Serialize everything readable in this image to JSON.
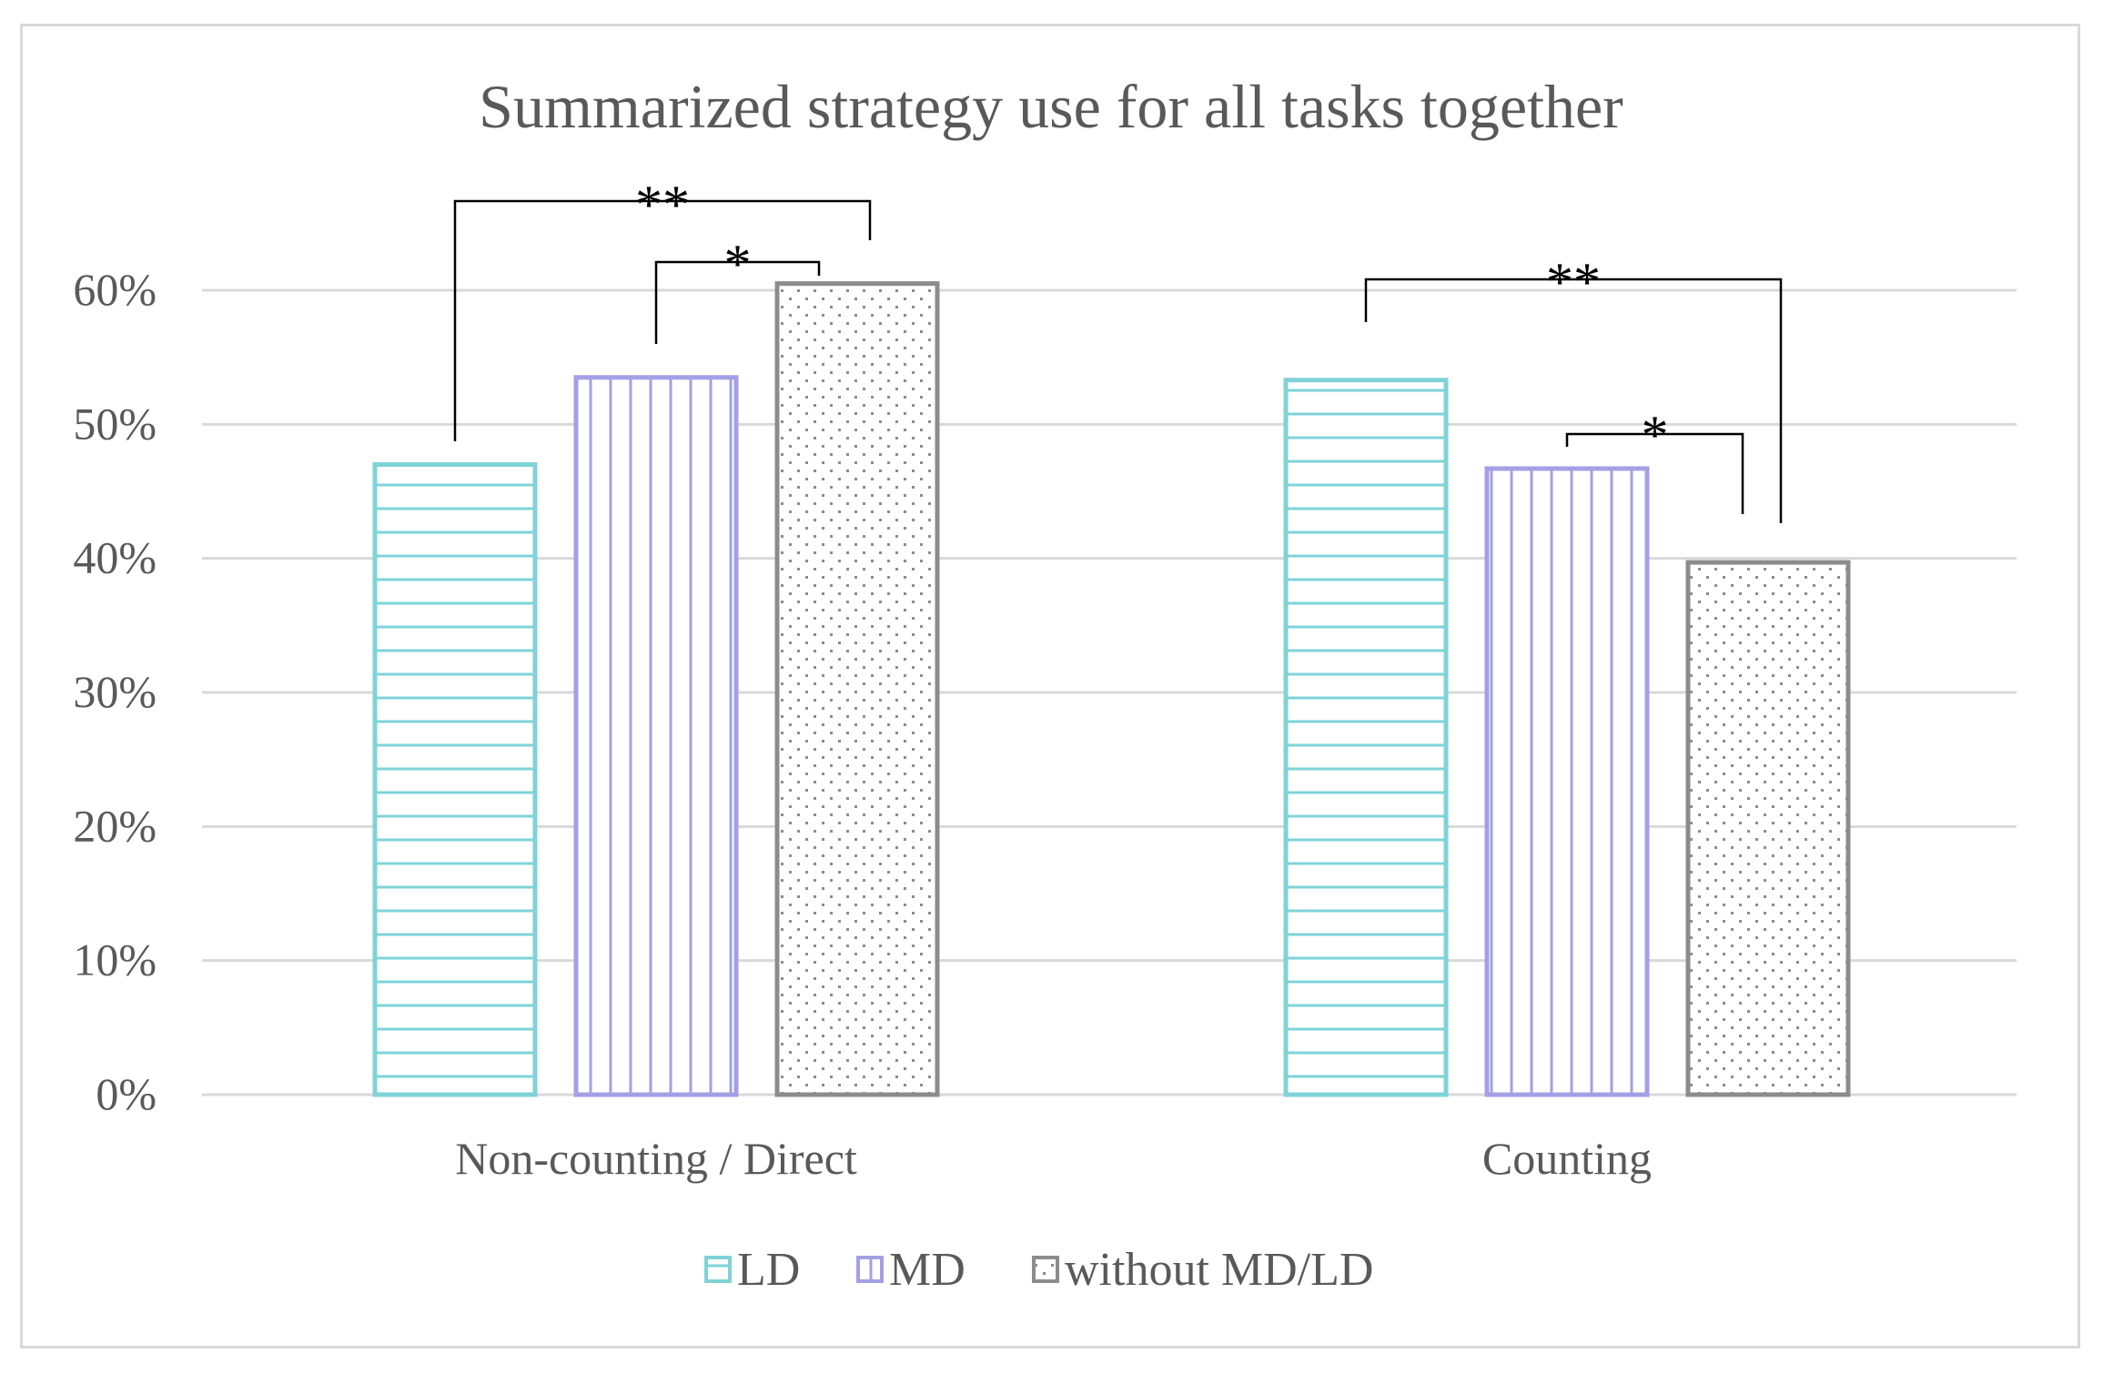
{
  "chart_data": {
    "type": "bar",
    "title": "Summarized strategy use for all tasks together",
    "xlabel": "",
    "ylabel": "",
    "categories": [
      "Non-counting / Direct",
      "Counting"
    ],
    "series": [
      {
        "name": "LD",
        "values": [
          47,
          53.3
        ],
        "color": "#7fd3d8",
        "pattern": "horizontal-lines"
      },
      {
        "name": "MD",
        "values": [
          53.5,
          46.7
        ],
        "color": "#a3a0e6",
        "pattern": "vertical-lines"
      },
      {
        "name": "without MD/LD",
        "values": [
          60.5,
          39.7
        ],
        "color": "#8c8c8c",
        "pattern": "dots"
      }
    ],
    "ylim": [
      0,
      60
    ],
    "yticks": [
      0,
      10,
      20,
      30,
      40,
      50,
      60
    ],
    "ytick_labels": [
      "0%",
      "10%",
      "20%",
      "30%",
      "40%",
      "50%",
      "60%"
    ],
    "grid": true,
    "legend_position": "bottom",
    "significance": [
      {
        "category": 0,
        "from": "LD",
        "to": "without MD/LD",
        "label": "**"
      },
      {
        "category": 0,
        "from": "MD",
        "to": "without MD/LD",
        "label": "*"
      },
      {
        "category": 1,
        "from": "LD",
        "to": "without MD/LD",
        "label": "**"
      },
      {
        "category": 1,
        "from": "MD",
        "to": "without MD/LD",
        "label": "*"
      }
    ]
  }
}
